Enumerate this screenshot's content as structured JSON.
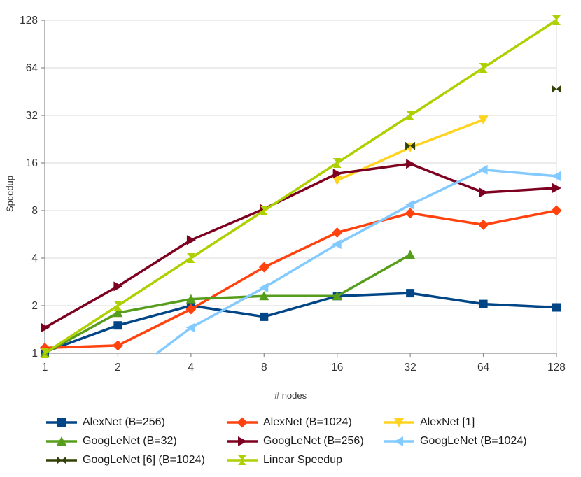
{
  "figure": {
    "xlabel": "# nodes",
    "ylabel": "Speedup"
  },
  "chart_data": {
    "type": "line",
    "title": "",
    "xlabel": "# nodes",
    "ylabel": "Speedup",
    "x_scale": "log2",
    "y_scale": "log2",
    "xlim": [
      1,
      128
    ],
    "ylim": [
      1,
      128
    ],
    "x_ticks": [
      1,
      2,
      4,
      8,
      16,
      32,
      64,
      128
    ],
    "y_ticks": [
      1,
      2,
      4,
      8,
      16,
      32,
      64,
      128
    ],
    "grid": "horizontal",
    "legend_position": "bottom",
    "colors": {
      "grid": "#d9d9d9",
      "axis": "#8c8c8c",
      "tick_label": "#333333"
    },
    "series": [
      {
        "name": "AlexNet (B=256)",
        "color": "#004586",
        "marker": "square",
        "x": [
          1,
          2,
          4,
          8,
          16,
          32,
          64,
          128
        ],
        "y": [
          1.02,
          1.5,
          2.0,
          1.7,
          2.3,
          2.4,
          2.05,
          1.95
        ]
      },
      {
        "name": "AlexNet (B=1024)",
        "color": "#FF420E",
        "marker": "diamond",
        "x": [
          1,
          2,
          4,
          8,
          16,
          32,
          64,
          128
        ],
        "y": [
          1.08,
          1.12,
          1.9,
          3.5,
          5.8,
          7.7,
          6.5,
          8.0
        ]
      },
      {
        "name": "AlexNet [1]",
        "color": "#FFD320",
        "marker": "triangle-down",
        "x": [
          16,
          32,
          64
        ],
        "y": [
          12.4,
          20,
          30
        ]
      },
      {
        "name": "GoogLeNet (B=32)",
        "color": "#579D1C",
        "marker": "triangle-up",
        "x": [
          1,
          2,
          4,
          8,
          16,
          32
        ],
        "y": [
          1.0,
          1.8,
          2.2,
          2.3,
          2.3,
          4.2
        ]
      },
      {
        "name": "GoogLeNet (B=256)",
        "color": "#7E0021",
        "marker": "triangle-right",
        "x": [
          1,
          2,
          4,
          8,
          16,
          32,
          64,
          128
        ],
        "y": [
          1.45,
          2.65,
          5.2,
          8.2,
          13.7,
          15.8,
          10.4,
          11.1
        ]
      },
      {
        "name": "GoogLeNet (B=1024)",
        "color": "#83CAFF",
        "marker": "triangle-left",
        "skip_first_marker": true,
        "x": [
          2.9,
          4,
          8,
          16,
          32,
          64,
          128
        ],
        "y": [
          1.0,
          1.45,
          2.6,
          4.9,
          8.7,
          14.5,
          13.2
        ]
      },
      {
        "name": "GoogLeNet [6] (B=1024)",
        "color": "#314004",
        "marker": "bowtie",
        "line": false,
        "x": [
          32,
          128
        ],
        "y": [
          20.5,
          47
        ]
      },
      {
        "name": "Linear Speedup",
        "color": "#AECF00",
        "marker": "hourglass",
        "x": [
          1,
          2,
          4,
          8,
          16,
          32,
          64,
          128
        ],
        "y": [
          1,
          2,
          4,
          8,
          16,
          32,
          64,
          128
        ]
      }
    ]
  }
}
